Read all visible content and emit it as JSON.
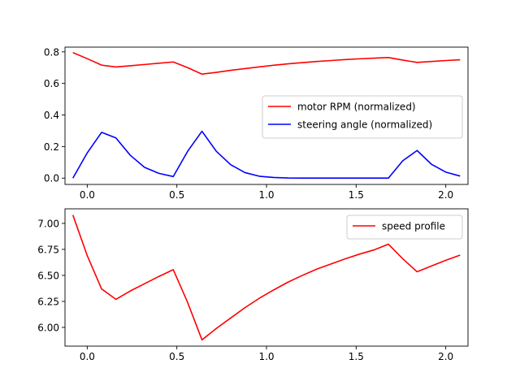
{
  "chart_data": [
    {
      "type": "line",
      "title": "",
      "xlabel": "",
      "ylabel": "",
      "xlim": [
        -0.124,
        2.124
      ],
      "ylim": [
        -0.04,
        0.83
      ],
      "xticks": [
        0.0,
        0.5,
        1.0,
        1.5,
        2.0
      ],
      "xtick_labels": [
        "0.0",
        "0.5",
        "1.0",
        "1.5",
        "2.0"
      ],
      "yticks": [
        0.0,
        0.2,
        0.4,
        0.6,
        0.8
      ],
      "ytick_labels": [
        "0.0",
        "0.2",
        "0.4",
        "0.6",
        "0.8"
      ],
      "grid": false,
      "legend_position": "center-right",
      "series": [
        {
          "name": "motor RPM (normalized)",
          "color": "#ff0000",
          "x": [
            -0.08,
            0.0,
            0.08,
            0.16,
            0.24,
            0.32,
            0.4,
            0.48,
            0.56,
            0.64,
            0.72,
            0.8,
            0.88,
            0.96,
            1.04,
            1.12,
            1.2,
            1.28,
            1.36,
            1.44,
            1.52,
            1.6,
            1.68,
            1.76,
            1.84,
            1.92,
            2.0,
            2.08
          ],
          "y": [
            0.795,
            0.757,
            0.716,
            0.704,
            0.712,
            0.72,
            0.728,
            0.736,
            0.7,
            0.659,
            0.67,
            0.683,
            0.694,
            0.705,
            0.715,
            0.724,
            0.732,
            0.739,
            0.745,
            0.751,
            0.756,
            0.76,
            0.764,
            0.748,
            0.733,
            0.739,
            0.745,
            0.75
          ]
        },
        {
          "name": "steering angle (normalized)",
          "color": "#0000ff",
          "x": [
            -0.08,
            0.0,
            0.08,
            0.16,
            0.24,
            0.32,
            0.4,
            0.48,
            0.56,
            0.64,
            0.72,
            0.8,
            0.88,
            0.96,
            1.04,
            1.12,
            1.2,
            1.28,
            1.36,
            1.44,
            1.52,
            1.6,
            1.68,
            1.76,
            1.84,
            1.92,
            2.0,
            2.08
          ],
          "y": [
            0.0,
            0.16,
            0.29,
            0.255,
            0.145,
            0.068,
            0.03,
            0.01,
            0.17,
            0.297,
            0.17,
            0.085,
            0.035,
            0.012,
            0.004,
            0.001,
            0.0,
            0.0,
            0.0,
            0.0,
            0.0,
            0.0,
            0.0,
            0.11,
            0.175,
            0.088,
            0.038,
            0.013
          ]
        }
      ]
    },
    {
      "type": "line",
      "title": "",
      "xlabel": "",
      "ylabel": "",
      "xlim": [
        -0.124,
        2.124
      ],
      "ylim": [
        5.82,
        7.14
      ],
      "xticks": [
        0.0,
        0.5,
        1.0,
        1.5,
        2.0
      ],
      "xtick_labels": [
        "0.0",
        "0.5",
        "1.0",
        "1.5",
        "2.0"
      ],
      "yticks": [
        6.0,
        6.25,
        6.5,
        6.75,
        7.0
      ],
      "ytick_labels": [
        "6.00",
        "6.25",
        "6.50",
        "6.75",
        "7.00"
      ],
      "grid": false,
      "legend_position": "top-right",
      "series": [
        {
          "name": "speed profile",
          "color": "#ff0000",
          "x": [
            -0.08,
            0.0,
            0.08,
            0.16,
            0.24,
            0.32,
            0.4,
            0.48,
            0.56,
            0.64,
            0.72,
            0.8,
            0.88,
            0.96,
            1.04,
            1.12,
            1.2,
            1.28,
            1.36,
            1.44,
            1.52,
            1.6,
            1.68,
            1.76,
            1.84,
            1.92,
            2.0,
            2.08
          ],
          "y": [
            7.08,
            6.69,
            6.37,
            6.27,
            6.35,
            6.42,
            6.49,
            6.555,
            6.24,
            5.88,
            5.99,
            6.09,
            6.19,
            6.28,
            6.36,
            6.435,
            6.5,
            6.56,
            6.61,
            6.66,
            6.705,
            6.745,
            6.8,
            6.66,
            6.535,
            6.59,
            6.645,
            6.695
          ]
        }
      ]
    }
  ]
}
